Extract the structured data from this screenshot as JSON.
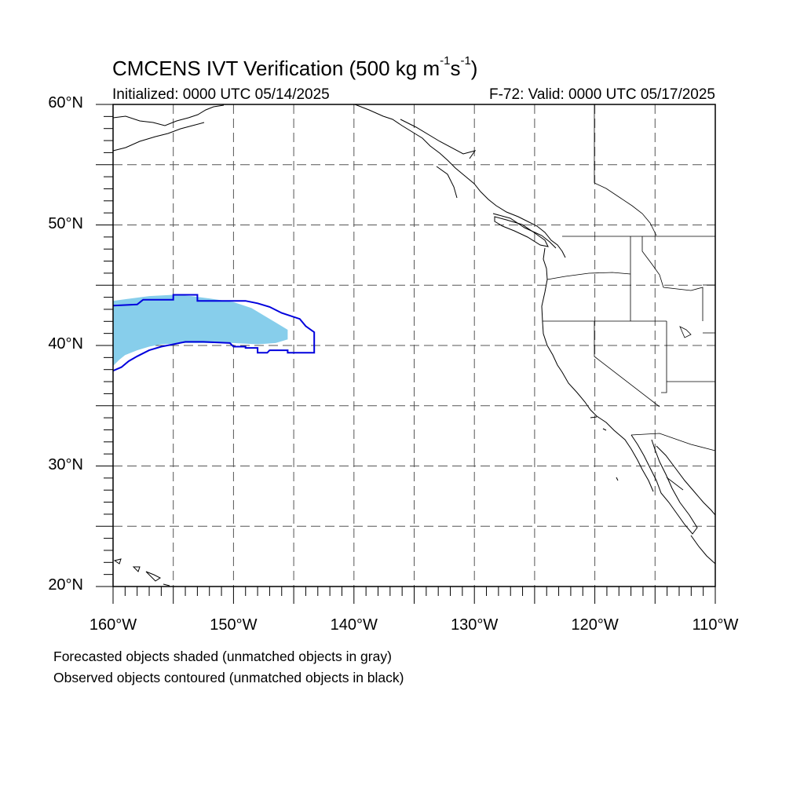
{
  "title": {
    "main": "CMCENS IVT Verification (500 kg m",
    "exp1": "-1",
    "s": "s",
    "exp2": "-1",
    "close": ")"
  },
  "subtitle_left": "Initialized: 0000 UTC 05/14/2025",
  "subtitle_right": "F-72: Valid: 0000 UTC 05/17/2025",
  "map_extent": {
    "lon_min": -160,
    "lon_max": -110,
    "lat_min": 20,
    "lat_max": 60
  },
  "grid": {
    "lon_step_deg": 5,
    "lat_step_deg": 5,
    "style": "dashed",
    "color": "#555555"
  },
  "lat_labels": [
    {
      "lat": 60,
      "text": "60°N"
    },
    {
      "lat": 50,
      "text": "50°N"
    },
    {
      "lat": 40,
      "text": "40°N"
    },
    {
      "lat": 30,
      "text": "30°N"
    },
    {
      "lat": 20,
      "text": "20°N"
    }
  ],
  "lon_labels": [
    {
      "lon": -160,
      "text": "160°W"
    },
    {
      "lon": -150,
      "text": "150°W"
    },
    {
      "lon": -140,
      "text": "140°W"
    },
    {
      "lon": -130,
      "text": "130°W"
    },
    {
      "lon": -120,
      "text": "120°W"
    },
    {
      "lon": -110,
      "text": "110°W"
    }
  ],
  "forecast_object": {
    "color": "#87ceeb",
    "outline": [
      [
        -160,
        38.3
      ],
      [
        -159.5,
        38.8
      ],
      [
        -159,
        39.2
      ],
      [
        -158,
        39.6
      ],
      [
        -157,
        39.9
      ],
      [
        -156,
        40.1
      ],
      [
        -154,
        40.2
      ],
      [
        -150,
        40.2
      ],
      [
        -148,
        40.1
      ],
      [
        -146.5,
        40.2
      ],
      [
        -145.5,
        40.5
      ],
      [
        -145.5,
        41.3
      ],
      [
        -146.5,
        41.9
      ],
      [
        -147.5,
        42.5
      ],
      [
        -148.5,
        43.1
      ],
      [
        -150,
        43.6
      ],
      [
        -152,
        43.9
      ],
      [
        -153.5,
        44.1
      ],
      [
        -155,
        44.2
      ],
      [
        -157,
        44.1
      ],
      [
        -158.5,
        43.9
      ],
      [
        -160,
        43.7
      ]
    ]
  },
  "observed_object": {
    "color": "#0000dd",
    "outline": [
      [
        -160,
        43.3
      ],
      [
        -158,
        43.4
      ],
      [
        -157.5,
        43.8
      ],
      [
        -155,
        43.8
      ],
      [
        -155,
        44.2
      ],
      [
        -153,
        44.2
      ],
      [
        -153,
        43.7
      ],
      [
        -149,
        43.7
      ],
      [
        -148,
        43.5
      ],
      [
        -147,
        43.2
      ],
      [
        -146,
        42.7
      ],
      [
        -144.5,
        42.2
      ],
      [
        -144,
        41.6
      ],
      [
        -143.3,
        41.1
      ],
      [
        -143.3,
        39.4
      ],
      [
        -145.5,
        39.4
      ],
      [
        -145.5,
        39.6
      ],
      [
        -147,
        39.6
      ],
      [
        -147.2,
        39.4
      ],
      [
        -148,
        39.4
      ],
      [
        -148,
        39.8
      ],
      [
        -149,
        39.8
      ],
      [
        -149,
        39.9
      ],
      [
        -150,
        39.9
      ],
      [
        -150.3,
        40.2
      ],
      [
        -152.5,
        40.3
      ],
      [
        -154,
        40.3
      ],
      [
        -155,
        40.1
      ],
      [
        -156,
        39.9
      ],
      [
        -157,
        39.6
      ],
      [
        -158,
        39.1
      ],
      [
        -158.7,
        38.7
      ],
      [
        -159.3,
        38.2
      ],
      [
        -160,
        37.9
      ]
    ]
  },
  "footer": {
    "line1": "Forecasted objects shaded (unmatched objects in gray)",
    "line2": "Observed objects contoured (unmatched objects in black)"
  }
}
